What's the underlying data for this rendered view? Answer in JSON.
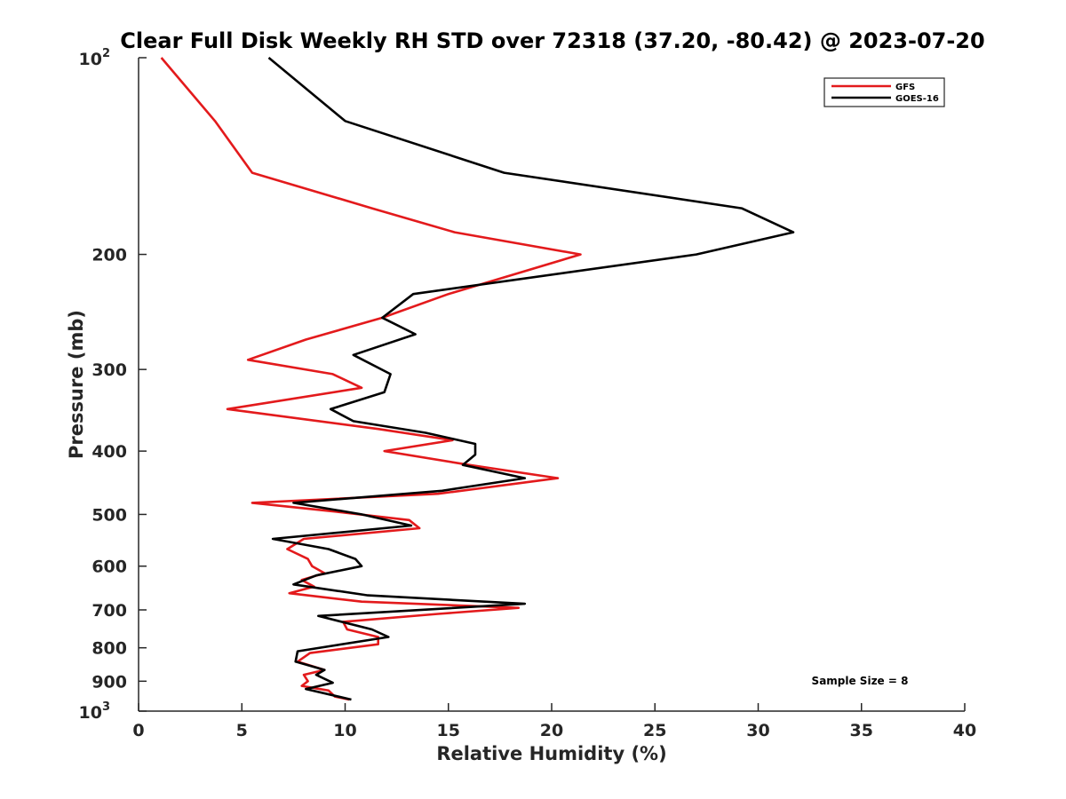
{
  "chart_data": {
    "type": "line",
    "title": "Clear Full Disk Weekly RH STD over 72318 (37.20, -80.42) @ 2023-07-20",
    "xlabel": "Relative Humidity (%)",
    "ylabel": "Pressure (mb)",
    "xlim": [
      0,
      40
    ],
    "ylim": [
      100,
      1000
    ],
    "y_scale": "log",
    "y_reversed": true,
    "grid": false,
    "legend_placement": "top-right",
    "x_ticks": [
      "0",
      "5",
      "10",
      "15",
      "20",
      "25",
      "30",
      "35",
      "40"
    ],
    "y_ticks": [
      {
        "value": 100,
        "label": "10",
        "sup": "2"
      },
      {
        "value": 200,
        "label": "200",
        "sup": ""
      },
      {
        "value": 300,
        "label": "300",
        "sup": ""
      },
      {
        "value": 400,
        "label": "400",
        "sup": ""
      },
      {
        "value": 500,
        "label": "500",
        "sup": ""
      },
      {
        "value": 600,
        "label": "600",
        "sup": ""
      },
      {
        "value": 700,
        "label": "700",
        "sup": ""
      },
      {
        "value": 800,
        "label": "800",
        "sup": ""
      },
      {
        "value": 900,
        "label": "900",
        "sup": ""
      },
      {
        "value": 1000,
        "label": "10",
        "sup": "3"
      }
    ],
    "annotation": "Sample Size = 8",
    "series": [
      {
        "name": "GFS",
        "color": "#e31a1c",
        "points": [
          [
            1.1,
            100
          ],
          [
            3.7,
            125
          ],
          [
            5.5,
            150
          ],
          [
            11.3,
            170
          ],
          [
            15.3,
            185
          ],
          [
            21.4,
            200
          ],
          [
            15.0,
            230
          ],
          [
            11.8,
            250
          ],
          [
            8.1,
            270
          ],
          [
            5.3,
            290
          ],
          [
            9.4,
            305
          ],
          [
            10.8,
            320
          ],
          [
            4.3,
            345
          ],
          [
            11.6,
            370
          ],
          [
            15.2,
            385
          ],
          [
            11.9,
            400
          ],
          [
            16.0,
            420
          ],
          [
            20.3,
            440
          ],
          [
            14.5,
            465
          ],
          [
            5.5,
            480
          ],
          [
            9.5,
            495
          ],
          [
            13.1,
            510
          ],
          [
            13.6,
            525
          ],
          [
            8.0,
            545
          ],
          [
            7.2,
            565
          ],
          [
            8.2,
            585
          ],
          [
            8.4,
            600
          ],
          [
            9.0,
            615
          ],
          [
            7.9,
            630
          ],
          [
            8.5,
            645
          ],
          [
            7.3,
            660
          ],
          [
            10.8,
            680
          ],
          [
            18.4,
            695
          ],
          [
            14.5,
            710
          ],
          [
            9.9,
            730
          ],
          [
            10.1,
            750
          ],
          [
            11.6,
            770
          ],
          [
            11.6,
            790
          ],
          [
            8.3,
            815
          ],
          [
            7.7,
            840
          ],
          [
            9.0,
            865
          ],
          [
            8.0,
            880
          ],
          [
            8.2,
            900
          ],
          [
            7.9,
            915
          ],
          [
            9.2,
            930
          ],
          [
            9.5,
            950
          ],
          [
            10.2,
            960
          ]
        ]
      },
      {
        "name": "GOES-16",
        "color": "#000000",
        "points": [
          [
            6.3,
            100
          ],
          [
            10.0,
            125
          ],
          [
            17.7,
            150
          ],
          [
            29.2,
            170
          ],
          [
            31.7,
            185
          ],
          [
            27.0,
            200
          ],
          [
            13.3,
            230
          ],
          [
            11.8,
            250
          ],
          [
            13.4,
            265
          ],
          [
            10.4,
            285
          ],
          [
            12.2,
            305
          ],
          [
            11.9,
            325
          ],
          [
            9.3,
            345
          ],
          [
            10.4,
            360
          ],
          [
            13.9,
            375
          ],
          [
            16.3,
            390
          ],
          [
            16.3,
            405
          ],
          [
            15.7,
            420
          ],
          [
            18.7,
            440
          ],
          [
            14.7,
            460
          ],
          [
            7.5,
            480
          ],
          [
            10.8,
            500
          ],
          [
            13.2,
            520
          ],
          [
            6.5,
            545
          ],
          [
            9.2,
            565
          ],
          [
            10.5,
            585
          ],
          [
            10.8,
            600
          ],
          [
            8.6,
            620
          ],
          [
            7.5,
            640
          ],
          [
            11.1,
            665
          ],
          [
            18.7,
            685
          ],
          [
            8.7,
            715
          ],
          [
            11.3,
            750
          ],
          [
            12.1,
            770
          ],
          [
            7.7,
            810
          ],
          [
            7.6,
            840
          ],
          [
            9.0,
            865
          ],
          [
            8.6,
            880
          ],
          [
            9.4,
            905
          ],
          [
            8.1,
            925
          ],
          [
            10.3,
            960
          ]
        ]
      }
    ]
  }
}
